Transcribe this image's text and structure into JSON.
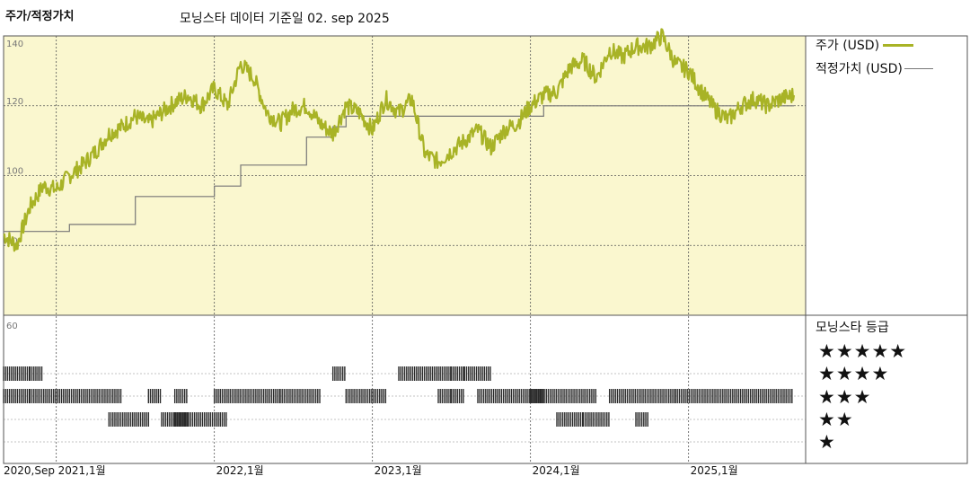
{
  "header": {
    "title": "주가/적정가치",
    "subtitle": "모닝스타 데이터 기준일 02. sep 2025"
  },
  "legend": [
    {
      "label": "주가 (USD)",
      "color": "#a8b326"
    },
    {
      "label": "적정가치 (USD)",
      "color": "#777777"
    }
  ],
  "rating_panel": {
    "title": "모닝스타 등급",
    "rows": [
      "★★★★★",
      "★★★★",
      "★★★",
      "★★",
      "★"
    ]
  },
  "chart_data": {
    "type": "line",
    "colors": {
      "price": "#a8b326",
      "fair_value": "#777777",
      "price_bg": "#faf7cf",
      "bars": "#2a2a2a"
    },
    "y_ticks": [
      60,
      80,
      100,
      120,
      140
    ],
    "ylim": [
      60,
      140
    ],
    "x_tick_labels": [
      "2020,Sep",
      "2021,1월",
      "2022,1월",
      "2023,1월",
      "2024,1월",
      "2025,1월"
    ],
    "series": [
      {
        "name": "주가 (USD)",
        "points": [
          [
            "2020-09",
            83
          ],
          [
            "2020-10",
            80
          ],
          [
            "2020-11",
            91
          ],
          [
            "2020-12",
            97
          ],
          [
            "2021-01",
            96
          ],
          [
            "2021-02",
            100
          ],
          [
            "2021-03",
            103
          ],
          [
            "2021-04",
            107
          ],
          [
            "2021-05",
            112
          ],
          [
            "2021-06",
            114
          ],
          [
            "2021-07",
            117
          ],
          [
            "2021-08",
            115
          ],
          [
            "2021-09",
            118
          ],
          [
            "2021-10",
            121
          ],
          [
            "2021-11",
            123
          ],
          [
            "2021-12",
            120
          ],
          [
            "2022-01",
            125
          ],
          [
            "2022-02",
            120
          ],
          [
            "2022-03",
            132
          ],
          [
            "2022-04",
            128
          ],
          [
            "2022-05",
            118
          ],
          [
            "2022-06",
            115
          ],
          [
            "2022-07",
            119
          ],
          [
            "2022-08",
            120
          ],
          [
            "2022-09",
            115
          ],
          [
            "2022-10",
            112
          ],
          [
            "2022-11",
            120
          ],
          [
            "2022-12",
            118
          ],
          [
            "2023-01",
            113
          ],
          [
            "2023-02",
            122
          ],
          [
            "2023-03",
            118
          ],
          [
            "2023-04",
            122
          ],
          [
            "2023-05",
            106
          ],
          [
            "2023-06",
            104
          ],
          [
            "2023-07",
            107
          ],
          [
            "2023-08",
            110
          ],
          [
            "2023-09",
            113
          ],
          [
            "2023-10",
            108
          ],
          [
            "2023-11",
            113
          ],
          [
            "2023-12",
            115
          ],
          [
            "2024-01",
            120
          ],
          [
            "2024-02",
            123
          ],
          [
            "2024-03",
            124
          ],
          [
            "2024-04",
            131
          ],
          [
            "2024-05",
            133
          ],
          [
            "2024-06",
            128
          ],
          [
            "2024-07",
            136
          ],
          [
            "2024-08",
            134
          ],
          [
            "2024-09",
            137
          ],
          [
            "2024-10",
            137
          ],
          [
            "2024-11",
            140
          ],
          [
            "2024-12",
            132
          ],
          [
            "2025-01",
            130
          ],
          [
            "2025-02",
            124
          ],
          [
            "2025-03",
            119
          ],
          [
            "2025-04",
            116
          ],
          [
            "2025-05",
            120
          ],
          [
            "2025-06",
            122
          ],
          [
            "2025-07",
            120
          ],
          [
            "2025-08",
            122
          ],
          [
            "2025-09",
            123
          ]
        ]
      },
      {
        "name": "적정가치 (USD)",
        "points": [
          [
            "2020-09",
            84
          ],
          [
            "2021-02",
            84
          ],
          [
            "2021-02",
            86
          ],
          [
            "2021-07",
            86
          ],
          [
            "2021-07",
            94
          ],
          [
            "2022-01",
            94
          ],
          [
            "2022-01",
            97
          ],
          [
            "2022-03",
            97
          ],
          [
            "2022-03",
            103
          ],
          [
            "2022-08",
            103
          ],
          [
            "2022-08",
            111
          ],
          [
            "2022-10",
            111
          ],
          [
            "2022-10",
            114
          ],
          [
            "2022-11",
            114
          ],
          [
            "2022-11",
            117
          ],
          [
            "2024-02",
            117
          ],
          [
            "2024-02",
            120
          ],
          [
            "2025-09",
            120
          ]
        ]
      }
    ],
    "star_rating_history": [
      {
        "stars": 5,
        "segments": [
          [
            "2020-09",
            "2020-10"
          ],
          [
            "2020-11",
            "2020-11"
          ]
        ]
      },
      {
        "stars": 4,
        "segments": [
          [
            "2022-10",
            "2022-10"
          ],
          [
            "2023-03",
            "2023-06"
          ],
          [
            "2023-07",
            "2023-07"
          ],
          [
            "2023-08",
            "2023-09"
          ]
        ]
      },
      {
        "stars": 3,
        "segments": [
          [
            "2020-09",
            "2020-10"
          ],
          [
            "2020-11",
            "2021-05"
          ],
          [
            "2021-08",
            "2021-08"
          ],
          [
            "2021-10",
            "2021-10"
          ],
          [
            "2022-01",
            "2022-05"
          ],
          [
            "2022-06",
            "2022-08"
          ],
          [
            "2022-11",
            "2023-01"
          ],
          [
            "2023-06",
            "2023-06"
          ],
          [
            "2023-07",
            "2023-07"
          ],
          [
            "2023-09",
            "2024-01"
          ],
          [
            "2024-01",
            "2024-03"
          ],
          [
            "2024-04",
            "2024-05"
          ],
          [
            "2024-07",
            "2024-11"
          ],
          [
            "2024-12",
            "2025-08"
          ]
        ]
      },
      {
        "stars": 2,
        "segments": [
          [
            "2021-05",
            "2021-07"
          ],
          [
            "2021-09",
            "2021-10"
          ],
          [
            "2021-10",
            "2022-01"
          ],
          [
            "2024-03",
            "2024-04"
          ],
          [
            "2024-05",
            "2024-06"
          ],
          [
            "2024-09",
            "2024-09"
          ]
        ]
      },
      {
        "stars": 1,
        "segments": []
      }
    ]
  }
}
